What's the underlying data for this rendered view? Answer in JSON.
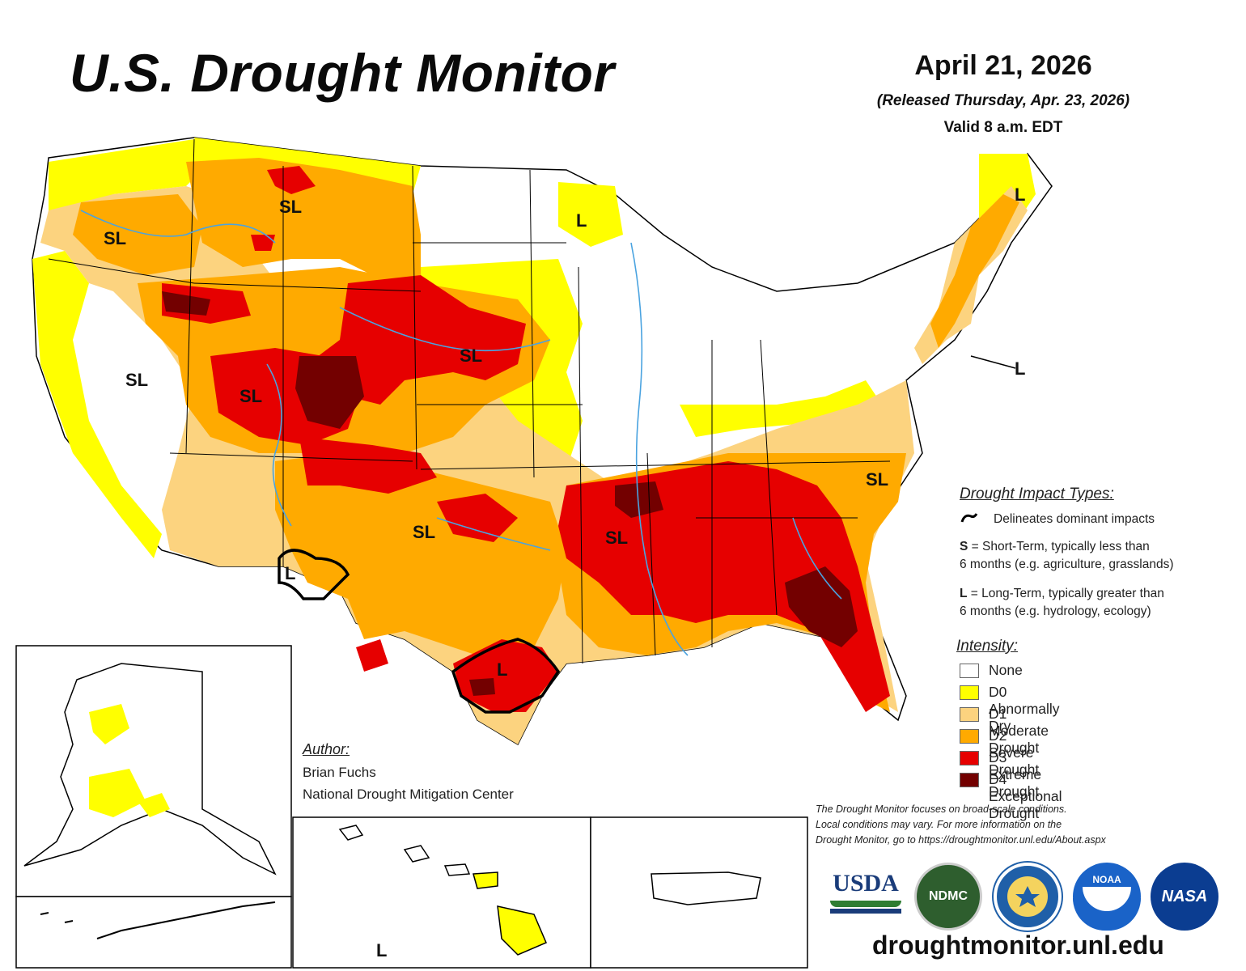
{
  "header": {
    "title": "U.S. Drought Monitor",
    "date": "April 21, 2026",
    "released": "(Released Thursday, Apr. 23, 2026)",
    "valid": "Valid 8 a.m. EDT"
  },
  "map_labels": [
    "SL",
    "SL",
    "SL",
    "SL",
    "SL",
    "SL",
    "SL",
    "SL",
    "L",
    "L",
    "L",
    "L",
    "L",
    "L"
  ],
  "legend": {
    "impact_heading": "Drought Impact Types:",
    "delineates": "Delineates dominant impacts",
    "short_term_key": "S",
    "short_term_text_1": " = Short-Term, typically less than",
    "short_term_text_2": "6 months (e.g. agriculture, grasslands)",
    "long_term_key": "L",
    "long_term_text_1": " = Long-Term, typically greater than",
    "long_term_text_2": "6 months (e.g. hydrology, ecology)",
    "intensity_heading": "Intensity:",
    "categories": [
      {
        "label": "None",
        "color": "#ffffff"
      },
      {
        "label": "D0 Abnormally Dry",
        "color": "#ffff00"
      },
      {
        "label": "D1 Moderate Drought",
        "color": "#fcd37f"
      },
      {
        "label": "D2 Severe Drought",
        "color": "#ffaa00"
      },
      {
        "label": "D3 Extreme Drought",
        "color": "#e60000"
      },
      {
        "label": "D4 Exceptional Drought",
        "color": "#730000"
      }
    ]
  },
  "author": {
    "heading": "Author:",
    "name": "Brian Fuchs",
    "org": "National Drought Mitigation Center"
  },
  "disclaimer": {
    "line1": "The Drought Monitor focuses on broad-scale conditions.",
    "line2": "Local conditions may vary. For more information on the",
    "line3": "Drought Monitor, go to https://droughtmonitor.unl.edu/About.aspx"
  },
  "logos": {
    "usda": "USDA",
    "ndmc": "NDMC",
    "noaa": "NOAA",
    "nasa": "NASA"
  },
  "footer": {
    "url": "droughtmonitor.unl.edu"
  }
}
